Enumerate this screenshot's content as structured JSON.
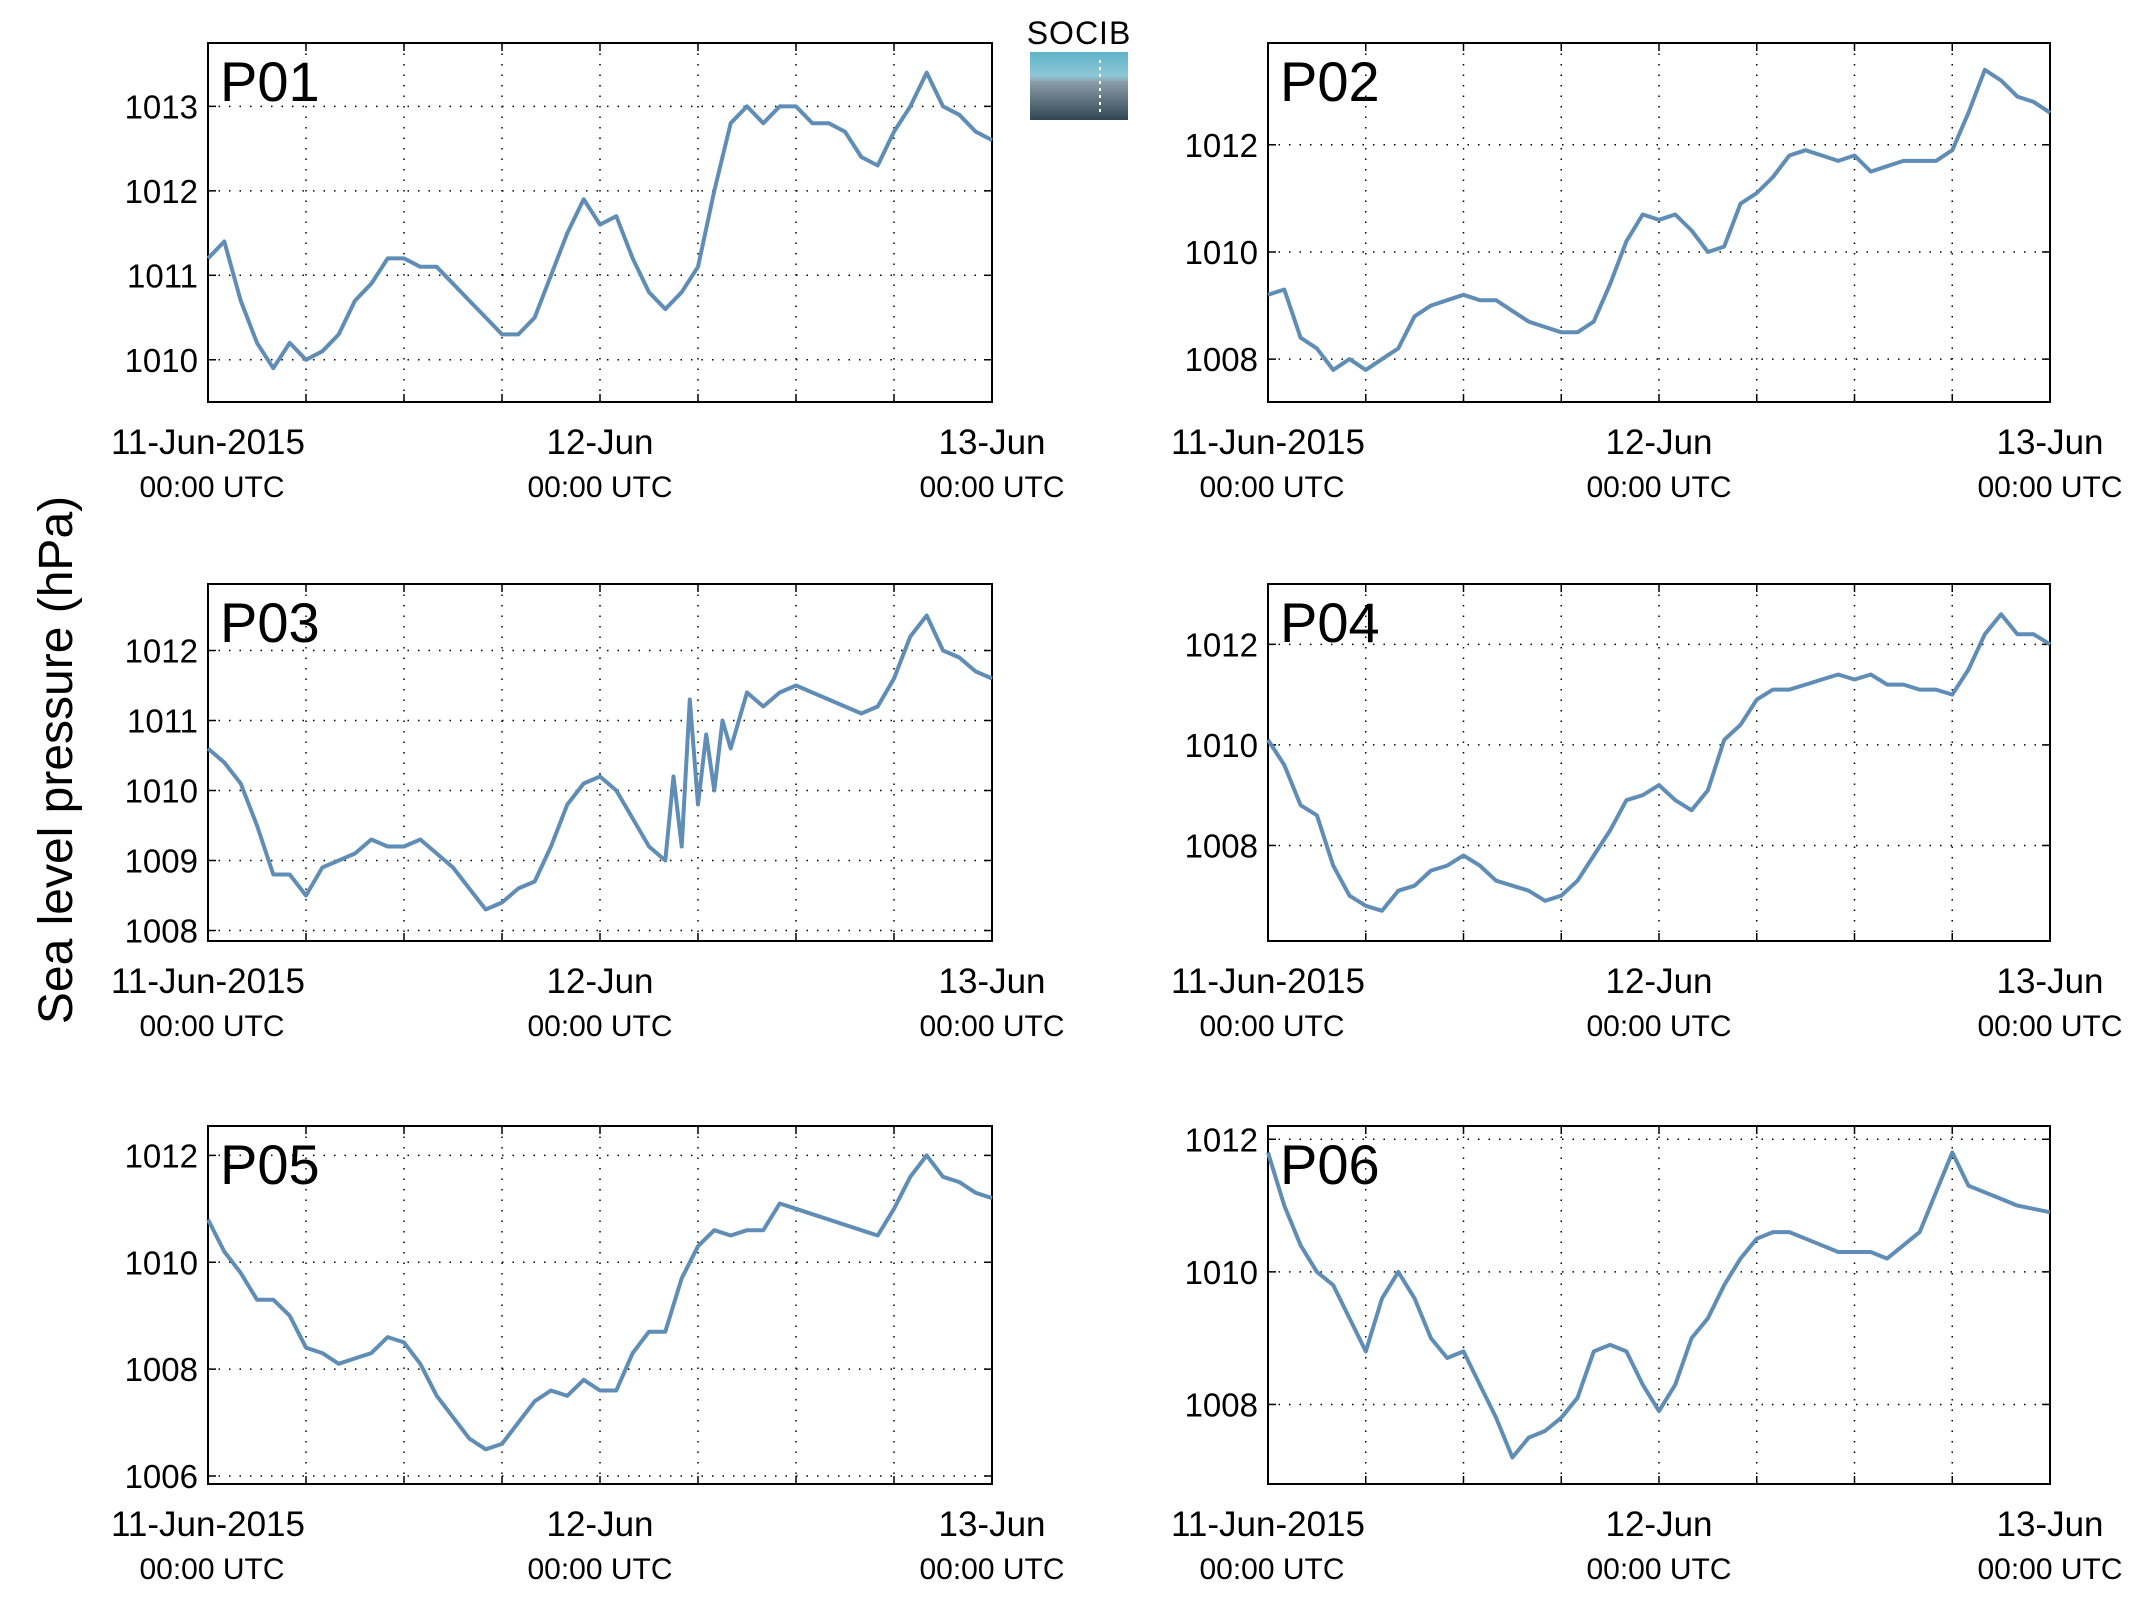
{
  "ylabel": "Sea level pressure (hPa)",
  "logo": {
    "text": "SOCIB",
    "colors": {
      "top": "#5fb3c9",
      "mid": "#8a9ba6",
      "bottom": "#2f4753"
    }
  },
  "line_color": "#5f8db6",
  "title_color": "#ff0000",
  "x_ticks": [
    {
      "date": "11-Jun-2015",
      "time": "00:00 UTC"
    },
    {
      "date": "12-Jun",
      "time": "00:00 UTC"
    },
    {
      "date": "13-Jun",
      "time": "00:00 UTC"
    }
  ],
  "chart_data": [
    {
      "type": "line",
      "title": "P01",
      "ylabel": "Sea level pressure (hPa)",
      "xlim": [
        "2015-06-11T00:00",
        "2015-06-13T00:00"
      ],
      "ylim": [
        1009.5,
        1013.75
      ],
      "yticks": [
        1010,
        1011,
        1012,
        1013
      ],
      "grid": true,
      "series": [
        {
          "x_hours": [
            0,
            1,
            2,
            3,
            4,
            5,
            6,
            7,
            8,
            9,
            10,
            11,
            12,
            13,
            14,
            15,
            16,
            17,
            18,
            19,
            20,
            21,
            22,
            23,
            24,
            25,
            26,
            27,
            28,
            29,
            30,
            31,
            32,
            33,
            34,
            35,
            36,
            37,
            38,
            39,
            40,
            41,
            42,
            43,
            44,
            45,
            46,
            47,
            48
          ],
          "values": [
            1011.2,
            1011.4,
            1010.7,
            1010.2,
            1009.9,
            1010.2,
            1010.0,
            1010.1,
            1010.3,
            1010.7,
            1010.9,
            1011.2,
            1011.2,
            1011.1,
            1011.1,
            1010.9,
            1010.7,
            1010.5,
            1010.3,
            1010.3,
            1010.5,
            1011.0,
            1011.5,
            1011.9,
            1011.6,
            1011.7,
            1011.2,
            1010.8,
            1010.6,
            1010.8,
            1011.1,
            1012.0,
            1012.8,
            1013.0,
            1012.8,
            1013.0,
            1013.0,
            1012.8,
            1012.8,
            1012.7,
            1012.4,
            1012.3,
            1012.7,
            1013.0,
            1013.4,
            1013.0,
            1012.9,
            1012.7,
            1012.6
          ]
        }
      ]
    },
    {
      "type": "line",
      "title": "P02",
      "ylabel": "Sea level pressure (hPa)",
      "xlim": [
        "2015-06-11T00:00",
        "2015-06-13T00:00"
      ],
      "ylim": [
        1007.2,
        1013.9
      ],
      "yticks": [
        1008,
        1010,
        1012
      ],
      "grid": true,
      "series": [
        {
          "x_hours": [
            0,
            1,
            2,
            3,
            4,
            5,
            6,
            7,
            8,
            9,
            10,
            11,
            12,
            13,
            14,
            15,
            16,
            17,
            18,
            19,
            20,
            21,
            22,
            23,
            24,
            25,
            26,
            27,
            28,
            29,
            30,
            31,
            32,
            33,
            34,
            35,
            36,
            37,
            38,
            39,
            40,
            41,
            42,
            43,
            44,
            45,
            46,
            47,
            48
          ],
          "values": [
            1009.2,
            1009.3,
            1008.4,
            1008.2,
            1007.8,
            1008.0,
            1007.8,
            1008.0,
            1008.2,
            1008.8,
            1009.0,
            1009.1,
            1009.2,
            1009.1,
            1009.1,
            1008.9,
            1008.7,
            1008.6,
            1008.5,
            1008.5,
            1008.7,
            1009.4,
            1010.2,
            1010.7,
            1010.6,
            1010.7,
            1010.4,
            1010.0,
            1010.1,
            1010.9,
            1011.1,
            1011.4,
            1011.8,
            1011.9,
            1011.8,
            1011.7,
            1011.8,
            1011.5,
            1011.6,
            1011.7,
            1011.7,
            1011.7,
            1011.9,
            1012.6,
            1013.4,
            1013.2,
            1012.9,
            1012.8,
            1012.6
          ]
        }
      ]
    },
    {
      "type": "line",
      "title": "P03",
      "ylabel": "Sea level pressure (hPa)",
      "xlim": [
        "2015-06-11T00:00",
        "2015-06-13T00:00"
      ],
      "ylim": [
        1007.85,
        1012.95
      ],
      "yticks": [
        1008,
        1009,
        1010,
        1011,
        1012
      ],
      "grid": true,
      "series": [
        {
          "x_hours": [
            0,
            1,
            2,
            3,
            4,
            5,
            6,
            7,
            8,
            9,
            10,
            11,
            12,
            13,
            14,
            15,
            16,
            17,
            18,
            19,
            20,
            21,
            22,
            23,
            24,
            25,
            26,
            27,
            28,
            28.5,
            29,
            29.5,
            30,
            30.5,
            31,
            31.5,
            32,
            33,
            34,
            35,
            36,
            37,
            38,
            39,
            40,
            41,
            42,
            43,
            44,
            45,
            46,
            47,
            48
          ],
          "values": [
            1010.6,
            1010.4,
            1010.1,
            1009.5,
            1008.8,
            1008.8,
            1008.5,
            1008.9,
            1009.0,
            1009.1,
            1009.3,
            1009.2,
            1009.2,
            1009.3,
            1009.1,
            1008.9,
            1008.6,
            1008.3,
            1008.4,
            1008.6,
            1008.7,
            1009.2,
            1009.8,
            1010.1,
            1010.2,
            1010.0,
            1009.6,
            1009.2,
            1009.0,
            1010.2,
            1009.2,
            1011.3,
            1009.8,
            1010.8,
            1010.0,
            1011.0,
            1010.6,
            1011.4,
            1011.2,
            1011.4,
            1011.5,
            1011.4,
            1011.3,
            1011.2,
            1011.1,
            1011.2,
            1011.6,
            1012.2,
            1012.5,
            1012.0,
            1011.9,
            1011.7,
            1011.6
          ]
        }
      ]
    },
    {
      "type": "line",
      "title": "P04",
      "ylabel": "Sea level pressure (hPa)",
      "xlim": [
        "2015-06-11T00:00",
        "2015-06-13T00:00"
      ],
      "ylim": [
        1006.1,
        1013.2
      ],
      "yticks": [
        1008,
        1010,
        1012
      ],
      "grid": true,
      "series": [
        {
          "x_hours": [
            0,
            1,
            2,
            3,
            4,
            5,
            6,
            7,
            8,
            9,
            10,
            11,
            12,
            13,
            14,
            15,
            16,
            17,
            18,
            19,
            20,
            21,
            22,
            23,
            24,
            25,
            26,
            27,
            28,
            29,
            30,
            31,
            32,
            33,
            34,
            35,
            36,
            37,
            38,
            39,
            40,
            41,
            42,
            43,
            44,
            45,
            46,
            47,
            48
          ],
          "values": [
            1010.1,
            1009.6,
            1008.8,
            1008.6,
            1007.6,
            1007.0,
            1006.8,
            1006.7,
            1007.1,
            1007.2,
            1007.5,
            1007.6,
            1007.8,
            1007.6,
            1007.3,
            1007.2,
            1007.1,
            1006.9,
            1007.0,
            1007.3,
            1007.8,
            1008.3,
            1008.9,
            1009.0,
            1009.2,
            1008.9,
            1008.7,
            1009.1,
            1010.1,
            1010.4,
            1010.9,
            1011.1,
            1011.1,
            1011.2,
            1011.3,
            1011.4,
            1011.3,
            1011.4,
            1011.2,
            1011.2,
            1011.1,
            1011.1,
            1011.0,
            1011.5,
            1012.2,
            1012.6,
            1012.2,
            1012.2,
            1012.0
          ]
        }
      ]
    },
    {
      "type": "line",
      "title": "P05",
      "ylabel": "Sea level pressure (hPa)",
      "xlim": [
        "2015-06-11T00:00",
        "2015-06-13T00:00"
      ],
      "ylim": [
        1005.85,
        1012.55
      ],
      "yticks": [
        1006,
        1008,
        1010,
        1012
      ],
      "grid": true,
      "series": [
        {
          "x_hours": [
            0,
            1,
            2,
            3,
            4,
            5,
            6,
            7,
            8,
            9,
            10,
            11,
            12,
            13,
            14,
            15,
            16,
            17,
            18,
            19,
            20,
            21,
            22,
            23,
            24,
            25,
            26,
            27,
            28,
            29,
            30,
            31,
            32,
            33,
            34,
            35,
            36,
            37,
            38,
            39,
            40,
            41,
            42,
            43,
            44,
            45,
            46,
            47,
            48
          ],
          "values": [
            1010.8,
            1010.2,
            1009.8,
            1009.3,
            1009.3,
            1009.0,
            1008.4,
            1008.3,
            1008.1,
            1008.2,
            1008.3,
            1008.6,
            1008.5,
            1008.1,
            1007.5,
            1007.1,
            1006.7,
            1006.5,
            1006.6,
            1007.0,
            1007.4,
            1007.6,
            1007.5,
            1007.8,
            1007.6,
            1007.6,
            1008.3,
            1008.7,
            1008.7,
            1009.7,
            1010.3,
            1010.6,
            1010.5,
            1010.6,
            1010.6,
            1011.1,
            1011.0,
            1010.9,
            1010.8,
            1010.7,
            1010.6,
            1010.5,
            1011.0,
            1011.6,
            1012.0,
            1011.6,
            1011.5,
            1011.3,
            1011.2
          ]
        }
      ]
    },
    {
      "type": "line",
      "title": "P06",
      "ylabel": "Sea level pressure (hPa)",
      "xlim": [
        "2015-06-11T00:00",
        "2015-06-13T00:00"
      ],
      "ylim": [
        1006.8,
        1012.2
      ],
      "yticks": [
        1008,
        1010,
        1012
      ],
      "grid": true,
      "series": [
        {
          "x_hours": [
            0,
            1,
            2,
            3,
            4,
            5,
            6,
            7,
            8,
            9,
            10,
            11,
            12,
            13,
            14,
            15,
            16,
            17,
            18,
            19,
            20,
            21,
            22,
            23,
            24,
            25,
            26,
            27,
            28,
            29,
            30,
            31,
            32,
            33,
            34,
            35,
            36,
            37,
            38,
            39,
            40,
            41,
            42,
            43,
            44,
            45,
            46,
            47,
            48
          ],
          "values": [
            1011.8,
            1011.0,
            1010.4,
            1010.0,
            1009.8,
            1009.3,
            1008.8,
            1009.6,
            1010.0,
            1009.6,
            1009.0,
            1008.7,
            1008.8,
            1008.3,
            1007.8,
            1007.2,
            1007.5,
            1007.6,
            1007.8,
            1008.1,
            1008.8,
            1008.9,
            1008.8,
            1008.3,
            1007.9,
            1008.3,
            1009.0,
            1009.3,
            1009.8,
            1010.2,
            1010.5,
            1010.6,
            1010.6,
            1010.5,
            1010.4,
            1010.3,
            1010.3,
            1010.3,
            1010.2,
            1010.4,
            1010.6,
            1011.2,
            1011.8,
            1011.3,
            1011.2,
            1011.1,
            1011.0,
            1010.95,
            1010.9
          ]
        }
      ]
    }
  ]
}
